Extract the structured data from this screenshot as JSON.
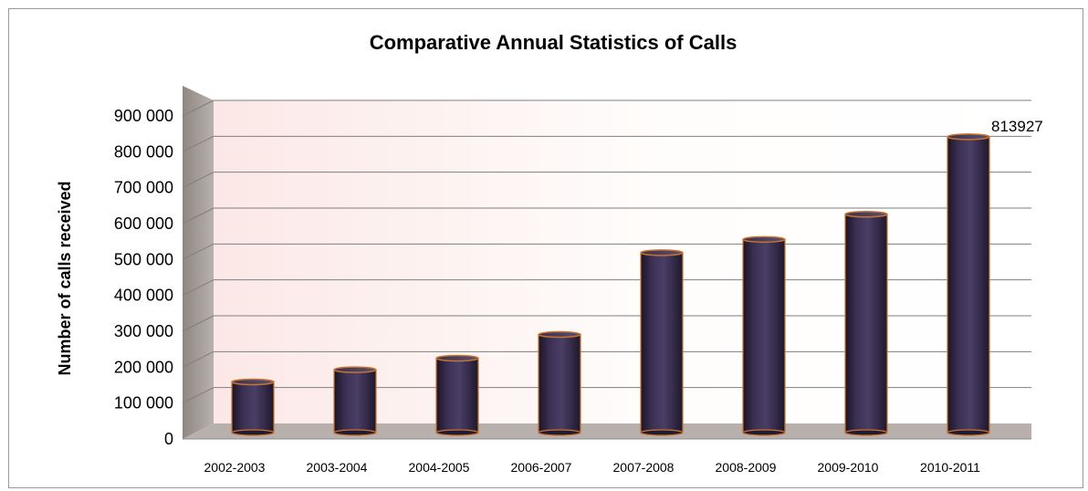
{
  "chart_data": {
    "type": "bar",
    "title": "Comparative Annual Statistics of Calls",
    "xlabel": "",
    "ylabel": "Number of calls received",
    "ylim": [
      0,
      900000
    ],
    "ytick_values": [
      0,
      100000,
      200000,
      300000,
      400000,
      500000,
      600000,
      700000,
      800000,
      900000
    ],
    "ytick_labels": [
      "0",
      "100 000",
      "200 000",
      "300 000",
      "400 000",
      "500 000",
      "600 000",
      "700 000",
      "800 000",
      "900 000"
    ],
    "categories": [
      "2002-2003",
      "2003-2004",
      "2004-2005",
      "2006-2007",
      "2007-2008",
      "2008-2009",
      "2009-2010",
      "2010-2011"
    ],
    "values": [
      131000,
      165000,
      197000,
      263000,
      491000,
      528000,
      598000,
      813927
    ],
    "data_labels": [
      "",
      "",
      "",
      "",
      "",
      "",
      "",
      "813927"
    ],
    "grid": true,
    "legend": "none",
    "bar_style": "3d-cylinder",
    "colors": {
      "bar": "#2e2440",
      "bar_edge": "#c8742c",
      "wall": "#f6dede",
      "floor": "#b7b0ac",
      "gridline": "#7f7f7f"
    }
  }
}
